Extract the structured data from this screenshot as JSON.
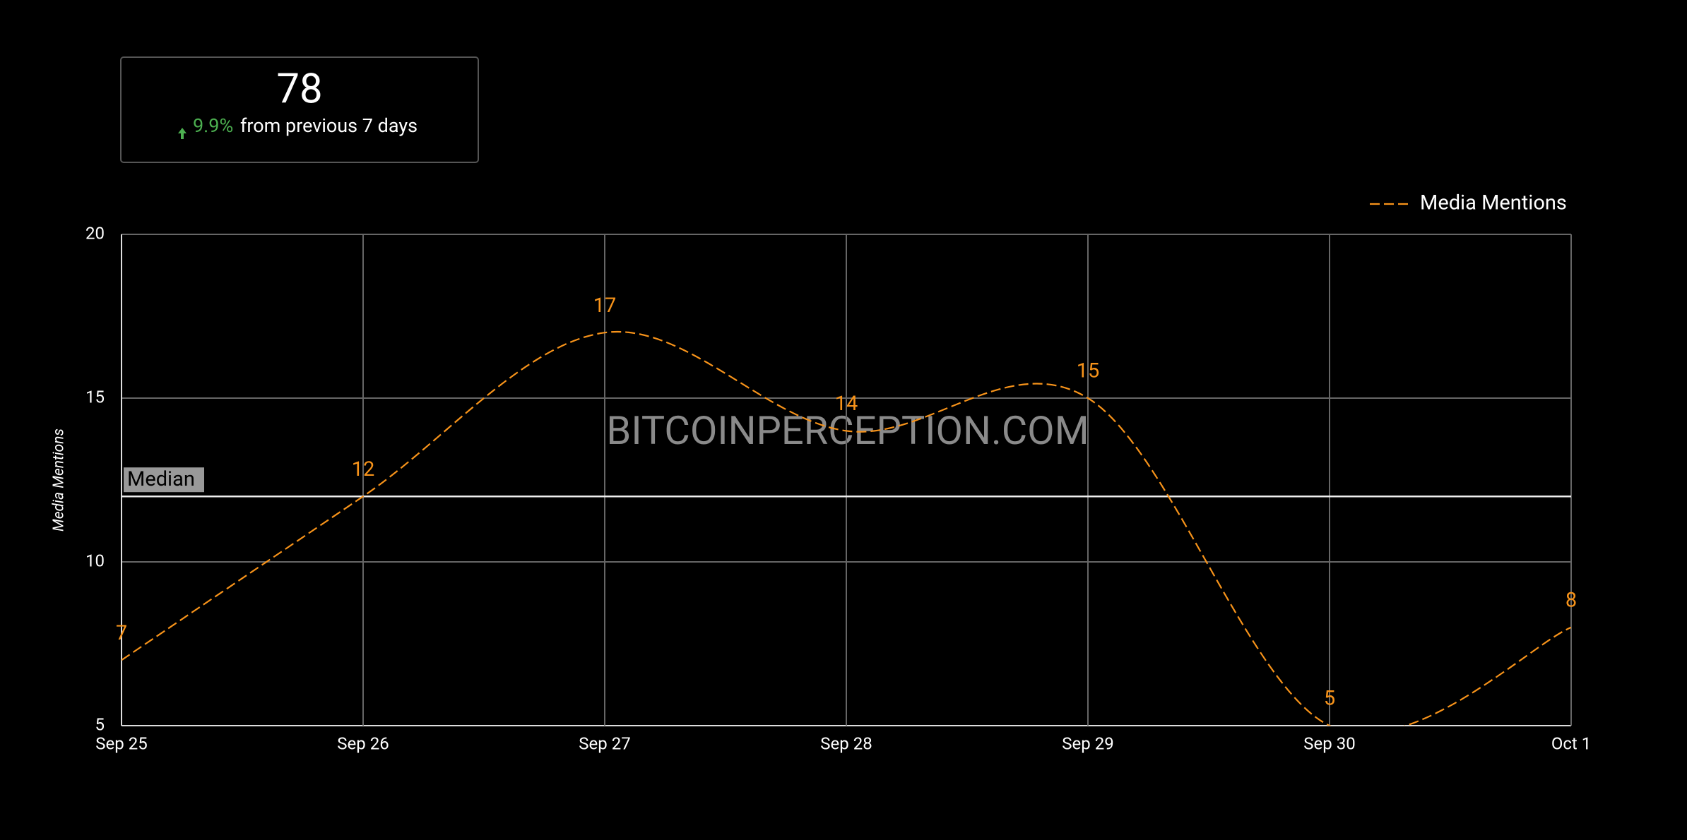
{
  "summary": {
    "value": 78,
    "change": "9.9%",
    "note": "from previous 7 days"
  },
  "chart_data": {
    "type": "line",
    "categories": [
      "Sep 25",
      "Sep 26",
      "Sep 27",
      "Sep 28",
      "Sep 29",
      "Sep 30",
      "Oct 1"
    ],
    "series": [
      {
        "name": "Media Mentions",
        "color": "#f7931a",
        "values": [
          7,
          12,
          17,
          14,
          15,
          5,
          8
        ]
      }
    ],
    "ylabel": "Media Mentions",
    "ylim": [
      5,
      20
    ],
    "yticks": [
      5,
      10,
      15,
      20
    ],
    "grid": true,
    "median": {
      "value": 12,
      "label": "Median"
    },
    "watermark": "BITCOINPERCEPTION.COM",
    "legend": "top-right"
  }
}
